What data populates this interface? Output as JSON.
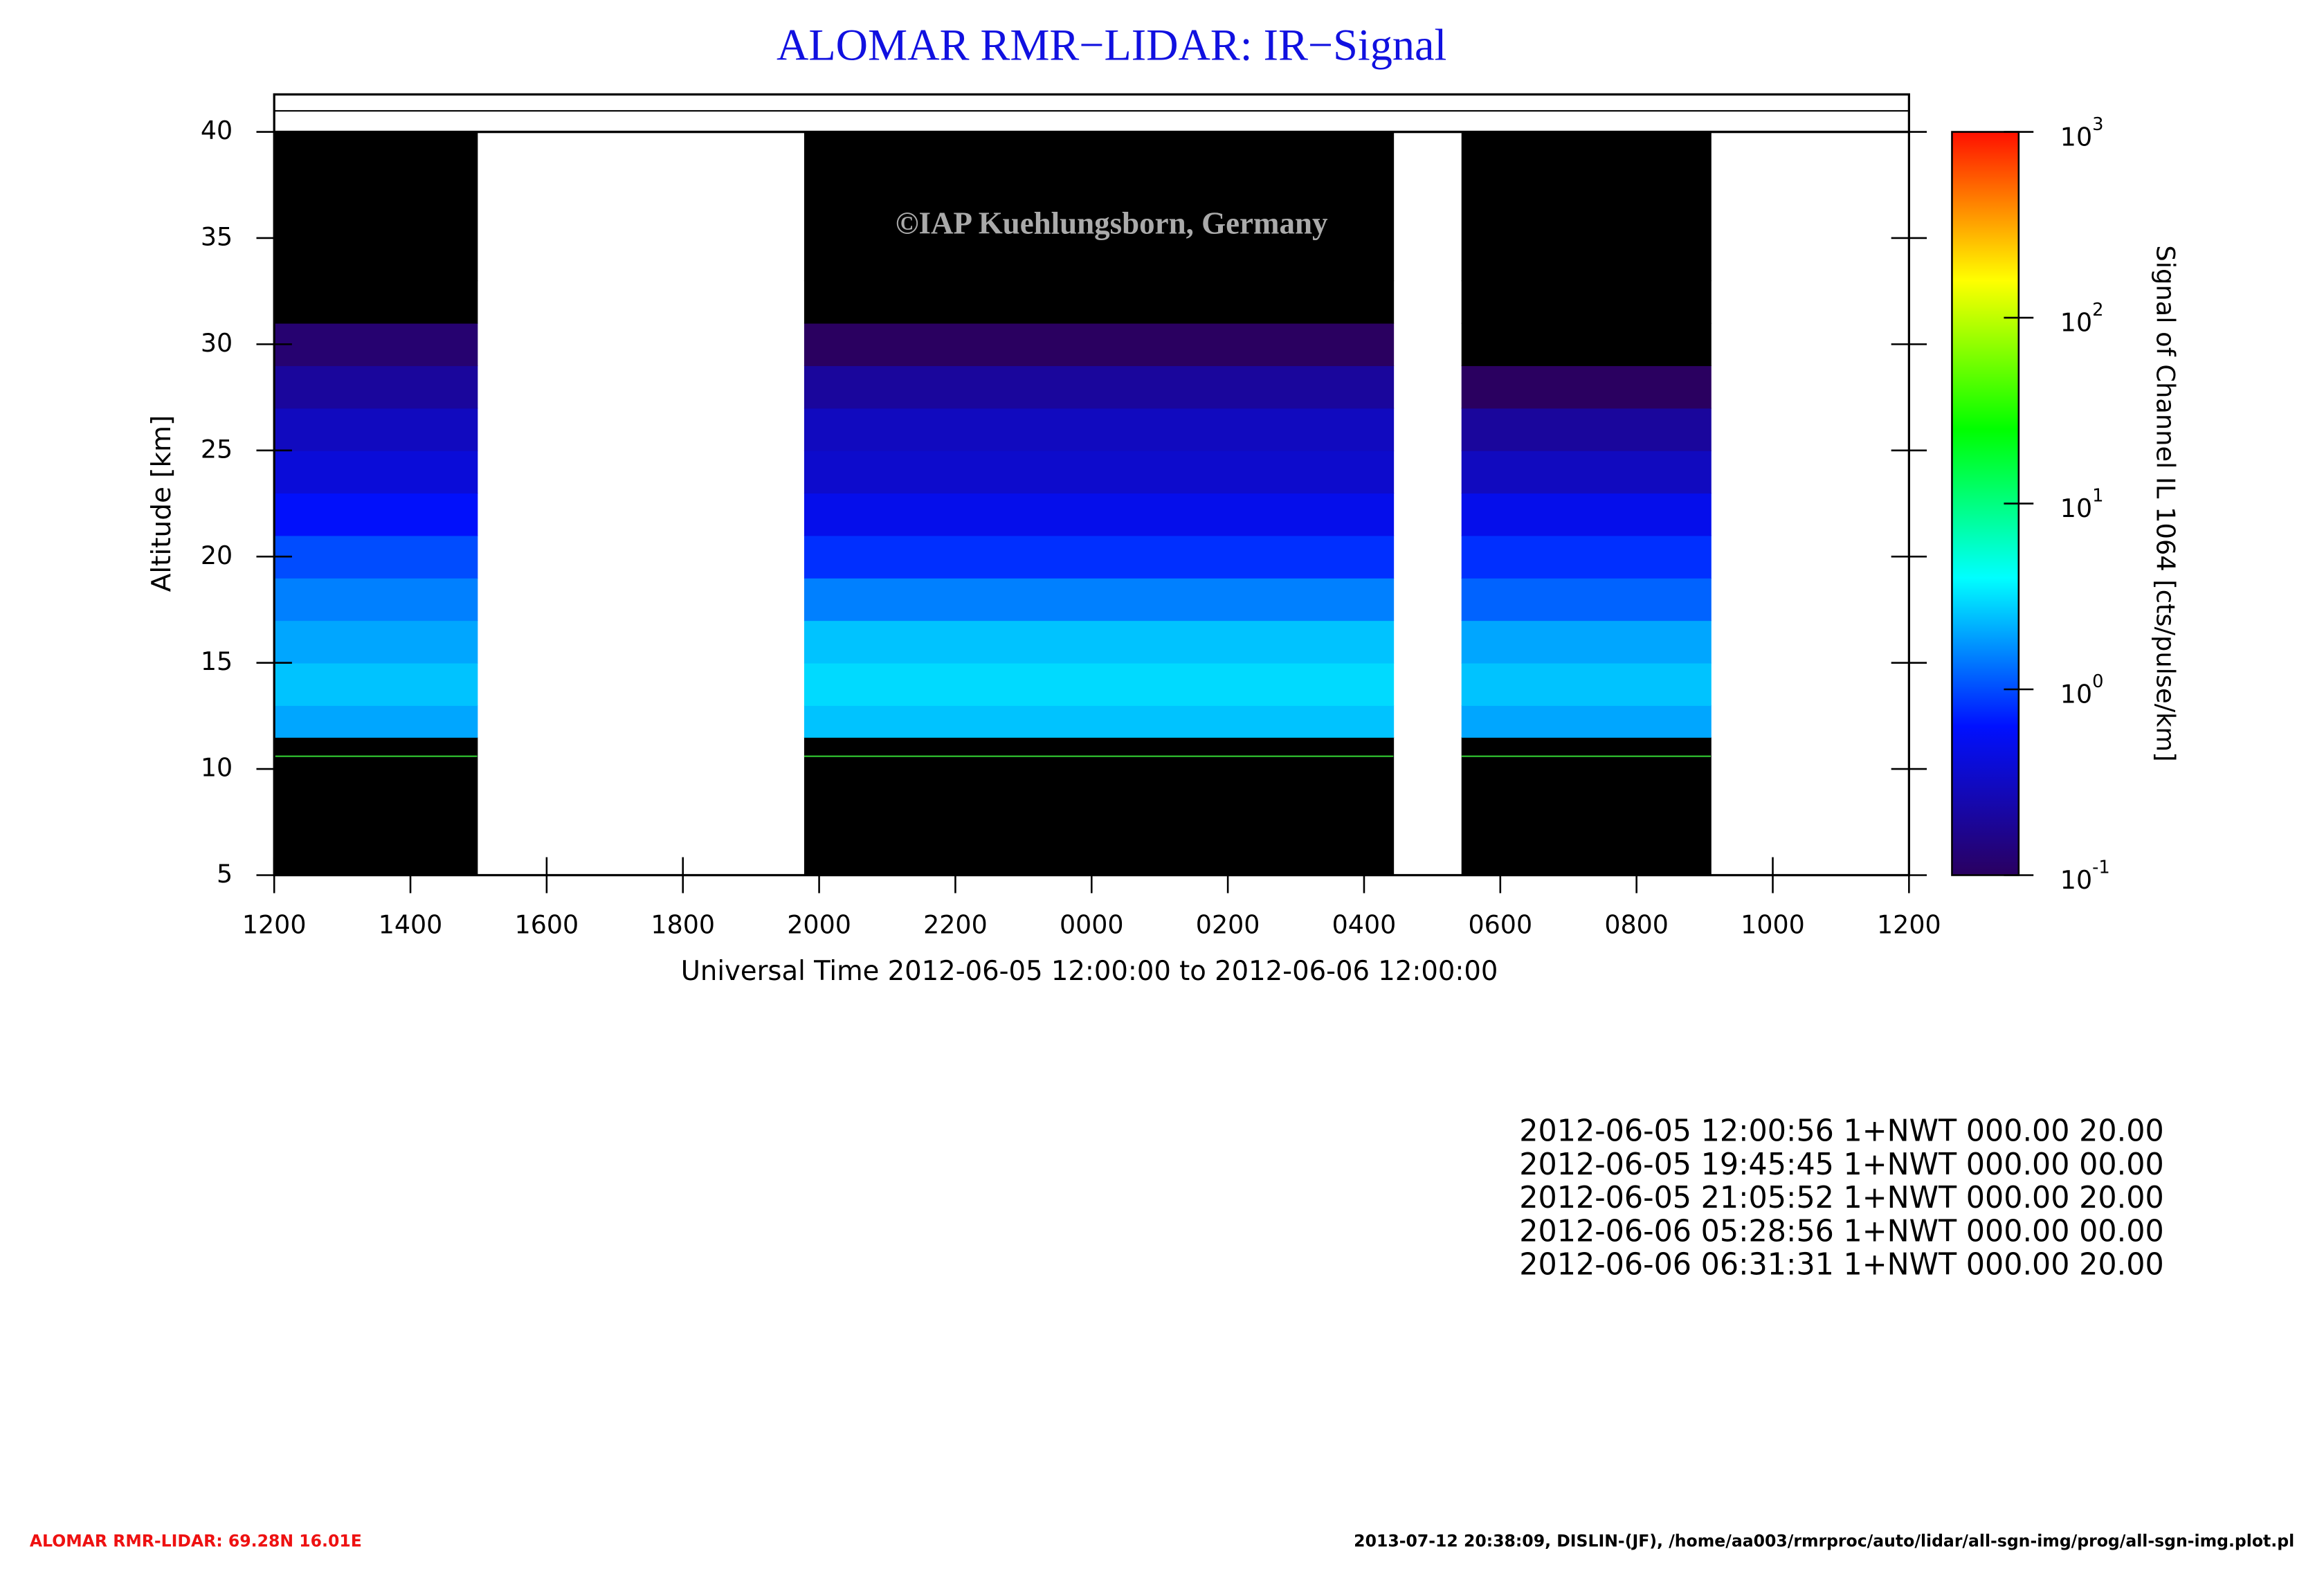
{
  "chart_data": {
    "type": "heatmap",
    "title": "ALOMAR RMR−LIDAR: IR−Signal",
    "watermark": "©IAP Kuehlungsborn, Germany",
    "xlabel": "Universal Time 2012-06-05 12:00:00 to 2012-06-06 12:00:00",
    "ylabel": "Altitude [km]",
    "colorbar_label": "Signal of Channel IL 1064 [cts/pulse/km]",
    "x_edges": [
      0,
      2.98,
      7.78,
      16.43,
      17.43,
      21.09,
      24
    ],
    "y_edges": [
      5,
      11.5,
      13,
      15,
      17,
      19,
      21,
      23,
      25,
      27,
      29,
      31,
      33,
      40
    ],
    "values": [
      [
        0.01,
        2,
        2.5,
        2,
        1.5,
        1,
        0.6,
        0.4,
        0.3,
        0.2,
        0.12,
        0.05,
        0.01
      ],
      null,
      [
        0.01,
        2.5,
        3,
        2.5,
        1.5,
        0.8,
        0.5,
        0.35,
        0.3,
        0.2,
        0.1,
        0.05,
        0.01
      ],
      null,
      [
        0.01,
        2,
        2.5,
        2,
        1.2,
        0.8,
        0.5,
        0.3,
        0.2,
        0.1,
        0.06,
        0.03,
        0.01
      ],
      null
    ],
    "reference_line": {
      "value": 10.6,
      "color": "#33cc33"
    },
    "xlim": [
      0,
      24
    ],
    "xticks": [
      {
        "value": 0,
        "label": "1200"
      },
      {
        "value": 2,
        "label": "1400"
      },
      {
        "value": 4,
        "label": "1600"
      },
      {
        "value": 6,
        "label": "1800"
      },
      {
        "value": 8,
        "label": "2000"
      },
      {
        "value": 10,
        "label": "2200"
      },
      {
        "value": 12,
        "label": "0000"
      },
      {
        "value": 14,
        "label": "0200"
      },
      {
        "value": 16,
        "label": "0400"
      },
      {
        "value": 18,
        "label": "0600"
      },
      {
        "value": 20,
        "label": "0800"
      },
      {
        "value": 22,
        "label": "1000"
      },
      {
        "value": 24,
        "label": "1200"
      }
    ],
    "ylim": [
      5,
      40
    ],
    "yticks": [
      5,
      10,
      15,
      20,
      25,
      30,
      35,
      40
    ],
    "color_scale": "log",
    "clim": [
      0.1,
      1000
    ],
    "cticks": [
      {
        "value": 0.1,
        "label": "10",
        "exponent": "-1"
      },
      {
        "value": 1,
        "label": "10",
        "exponent": "0"
      },
      {
        "value": 10,
        "label": "10",
        "exponent": "1"
      },
      {
        "value": 100,
        "label": "10",
        "exponent": "2"
      },
      {
        "value": 1000,
        "label": "10",
        "exponent": "3"
      }
    ],
    "colormap": [
      "#2a0060",
      "#0010ff",
      "#00ffff",
      "#00ff00",
      "#ffff00",
      "#ff1000"
    ],
    "under_color": "#000000",
    "annotations": [
      "2012-06-05 12:00:56 1+NWT 000.00 20.00",
      "2012-06-05 19:45:45 1+NWT 000.00 00.00",
      "2012-06-05 21:05:52 1+NWT 000.00 20.00",
      "2012-06-06 05:28:56 1+NWT 000.00 00.00",
      "2012-06-06 06:31:31 1+NWT 000.00 20.00"
    ],
    "footer_left": "ALOMAR RMR-LIDAR: 69.28N 16.01E",
    "footer_right": "2013-07-12 20:38:09, DISLIN-(JF), /home/aa003/rmrproc/auto/lidar/all-sgn-img/prog/all-sgn-img.plot.pl"
  }
}
